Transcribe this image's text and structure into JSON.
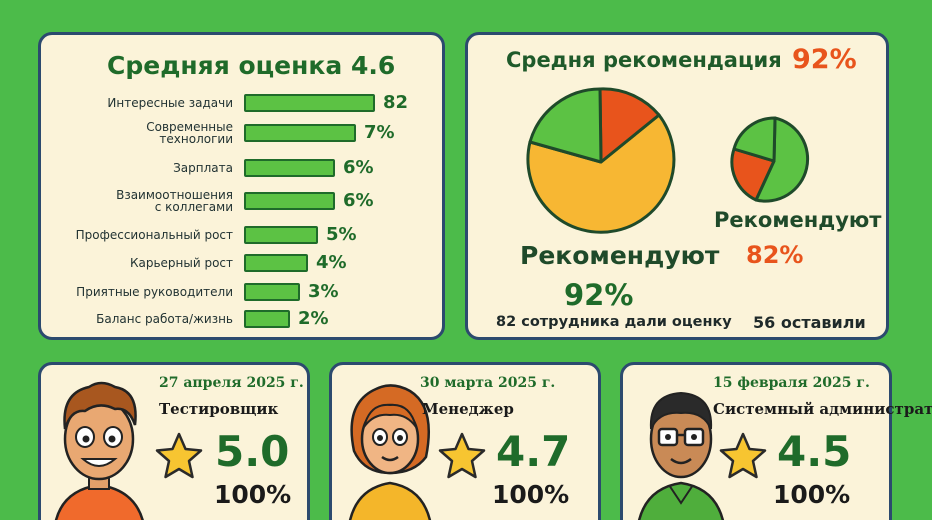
{
  "rating_card": {
    "title": "Средняя оценка 4.6",
    "items": [
      {
        "label": "Интересные задачи",
        "value": "82",
        "fill": 0.82
      },
      {
        "label": "Современные\nтехнологии",
        "value": "7%",
        "fill": 0.7
      },
      {
        "label": "Зарплата",
        "value": "6%",
        "fill": 0.57
      },
      {
        "label": "Взаимоотношения\nс коллегами",
        "value": "6%",
        "fill": 0.57
      },
      {
        "label": "Профессиональный рост",
        "value": "5%",
        "fill": 0.46
      },
      {
        "label": "Карьерный рост",
        "value": "4%",
        "fill": 0.4
      },
      {
        "label": "Приятные руководители",
        "value": "3%",
        "fill": 0.35
      },
      {
        "label": "Баланс работа/жизнь",
        "value": "2%",
        "fill": 0.29
      }
    ]
  },
  "recommend_card": {
    "title": "Средня рекомендация",
    "title_pct": "92%",
    "big_label": "Рекомендуют",
    "big_pct": "92%",
    "small_label": "Рекомендуют",
    "small_pct": "82%",
    "count_left": "82 сотрудника дали оценку",
    "count_right": "56 оставили"
  },
  "reviews": [
    {
      "date": "27 апреля 2025 г.",
      "role": "Тестировщик",
      "score": "5.0",
      "pct": "100%"
    },
    {
      "date": "30 марта 2025 г.",
      "role": "Менеджер",
      "score": "4.7",
      "pct": "100%"
    },
    {
      "date": "15 февраля 2025 г.",
      "role": "Системный администратор",
      "score": "4.5",
      "pct": "100%"
    }
  ],
  "colors": {
    "background": "#4cbb4a",
    "card": "#fbf3d9",
    "green": "#5cc244",
    "dark_green": "#1f6b2a",
    "orange": "#e8541c",
    "yellow": "#f7b733"
  },
  "icons": [
    "star-icon",
    "avatar-tester",
    "avatar-manager",
    "avatar-sysadmin"
  ]
}
